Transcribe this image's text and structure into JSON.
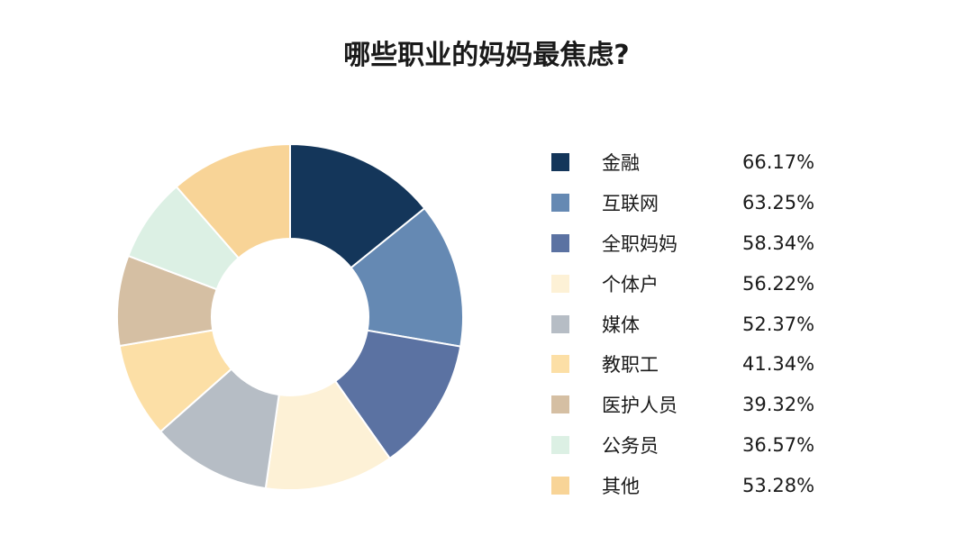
{
  "chart_data": {
    "type": "pie",
    "donut": true,
    "title": "哪些职业的妈妈最焦虑?",
    "legend_position": "right",
    "unit": "%",
    "slices": [
      {
        "label": "金融",
        "value": 66.17,
        "display": "66.17%",
        "color": "#14365a"
      },
      {
        "label": "互联网",
        "value": 63.25,
        "display": "63.25%",
        "color": "#6589b3"
      },
      {
        "label": "全职妈妈",
        "value": 58.34,
        "display": "58.34%",
        "color": "#5b72a2"
      },
      {
        "label": "个体户",
        "value": 56.22,
        "display": "56.22%",
        "color": "#fdf1d6"
      },
      {
        "label": "媒体",
        "value": 52.37,
        "display": "52.37%",
        "color": "#b6bdc5"
      },
      {
        "label": "教职工",
        "value": 41.34,
        "display": "41.34%",
        "color": "#fcdfa6"
      },
      {
        "label": "医护人员",
        "value": 39.32,
        "display": "39.32%",
        "color": "#d5bfa3"
      },
      {
        "label": "公务员",
        "value": 36.57,
        "display": "36.57%",
        "color": "#dcf0e4"
      },
      {
        "label": "其他",
        "value": 53.28,
        "display": "53.28%",
        "color": "#f8d497"
      }
    ]
  }
}
